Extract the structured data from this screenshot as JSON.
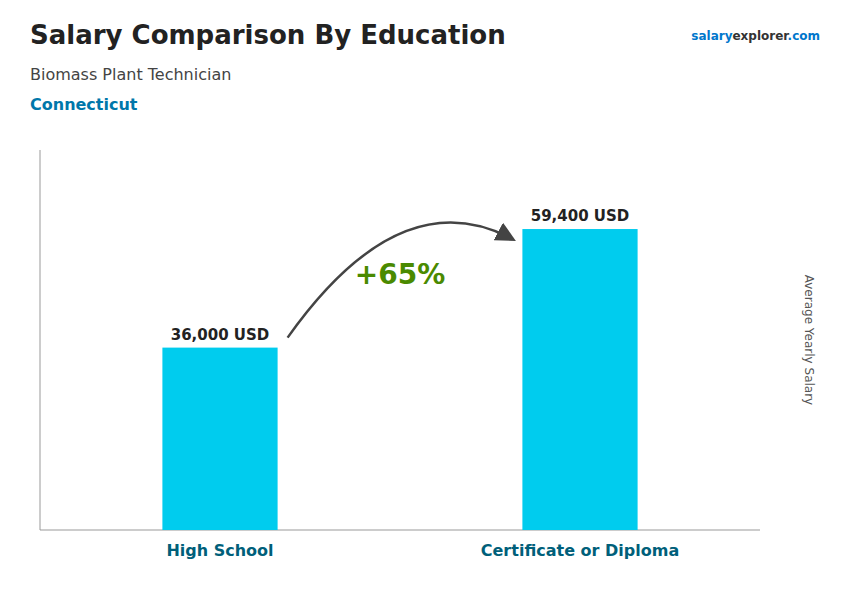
{
  "chart_data": {
    "type": "bar",
    "title": "Salary Comparison By Education",
    "subtitle": "Biomass Plant Technician",
    "annotations": [
      "Connecticut",
      "+65%",
      "salary",
      "explorer",
      ".com"
    ],
    "ylabel": "Average Yearly Salary",
    "categories": [
      "High School",
      "Certificate or Diploma"
    ],
    "values": [
      36000,
      59400
    ],
    "value_labels": [
      "36,000 USD",
      "59,400 USD"
    ],
    "data_labels": true,
    "tick_labels": false,
    "ylim": [
      0,
      75000
    ],
    "color": "#00CCEE"
  }
}
